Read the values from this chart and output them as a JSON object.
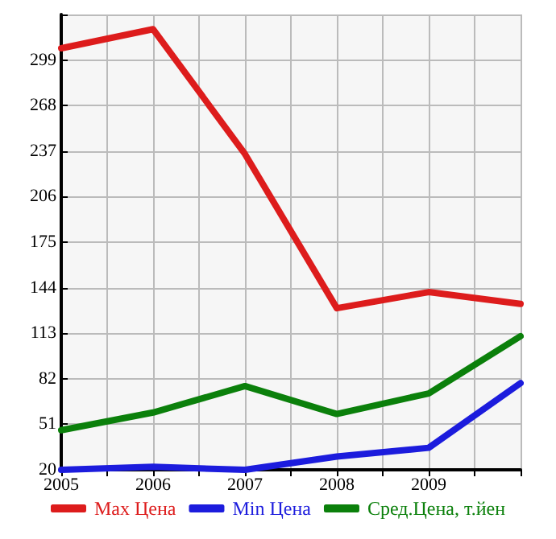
{
  "chart_data": {
    "type": "line",
    "x": [
      2005,
      2006,
      2007,
      2008,
      2009,
      2010
    ],
    "series": [
      {
        "name": "Max Цена",
        "color": "#dd1c1c",
        "values": [
          307,
          320,
          235,
          130,
          141,
          133
        ]
      },
      {
        "name": "Min Цена",
        "color": "#1c1cdd",
        "values": [
          20,
          22,
          20,
          29,
          35,
          79
        ]
      },
      {
        "name": "Сред.Цена, т.йен",
        "color": "#0b800b",
        "values": [
          47,
          59,
          77,
          58,
          72,
          111
        ]
      }
    ],
    "xlim": [
      2005,
      2010
    ],
    "xticks": [
      2005,
      {
        "value": 2005.5,
        "label": null
      },
      2006,
      {
        "value": 2006.5,
        "label": null
      },
      2007,
      {
        "value": 2007.5,
        "label": null
      },
      2008,
      {
        "value": 2008.5,
        "label": null
      },
      2009,
      {
        "value": 2009.5,
        "label": null
      },
      {
        "value": 2010,
        "label": null
      }
    ],
    "ylim": [
      20,
      330
    ],
    "yticks": [
      20,
      51,
      82,
      113,
      144,
      175,
      206,
      237,
      268,
      299,
      {
        "value": 330,
        "label": null
      }
    ],
    "grid": true,
    "legend": "bottom",
    "marker": "none",
    "line_style": "solid"
  }
}
